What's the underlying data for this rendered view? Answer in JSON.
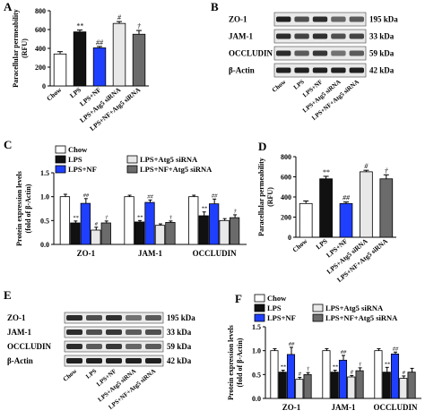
{
  "colors": {
    "Chow": "#ffffff",
    "LPS": "#111111",
    "LPS+NF": "#1f3fff",
    "LPS+Atg5 siRNA": "#e8e8e8",
    "LPS+NF+Atg5 siRNA": "#6b6b6b"
  },
  "chart_data": [
    {
      "panel": "A",
      "type": "bar",
      "ylabel": "Paracellular permeability (RFU)",
      "ylim": [
        0,
        800
      ],
      "yticks": [
        0,
        200,
        400,
        600,
        800
      ],
      "categories": [
        "Chow",
        "LPS",
        "LPS+NF",
        "LPS+Atg5 siRNA",
        "LPS+NF+Atg5 siRNA"
      ],
      "values": [
        340,
        575,
        405,
        665,
        550
      ],
      "errors": [
        25,
        20,
        15,
        20,
        40
      ],
      "annotations": [
        "",
        "**",
        "##",
        "#",
        "†"
      ]
    },
    {
      "panel": "B",
      "type": "blot",
      "rows": [
        {
          "label": "ZO-1",
          "kda": "195 kDa",
          "intensity": [
            0.95,
            0.75,
            0.9,
            0.65,
            0.7
          ]
        },
        {
          "label": "JAM-1",
          "kda": "33 kDa",
          "intensity": [
            0.9,
            0.8,
            0.88,
            0.75,
            0.8
          ]
        },
        {
          "label": "OCCLUDIN",
          "kda": "59 kDa",
          "intensity": [
            0.9,
            0.7,
            0.85,
            0.6,
            0.7
          ]
        },
        {
          "label": "β-Actin",
          "kda": "42 kDa",
          "intensity": [
            0.95,
            0.95,
            0.95,
            0.95,
            0.95
          ]
        }
      ],
      "lanes": [
        "Chow",
        "LPS",
        "LPS+NF",
        "LPS+Atg5 siRNA",
        "LPS+NF+Atg5 siRNA"
      ]
    },
    {
      "panel": "C",
      "type": "bar",
      "ylabel": "Protein expression levels (fold of β-Actin)",
      "ylim": [
        0,
        1.5
      ],
      "yticks": [
        0.0,
        0.5,
        1.0,
        1.5
      ],
      "categories": [
        "ZO-1",
        "JAM-1",
        "OCCLUDIN"
      ],
      "series": [
        {
          "name": "Chow",
          "values": [
            1.0,
            1.0,
            1.0
          ],
          "errors": [
            0.05,
            0.03,
            0.03
          ],
          "annotations": [
            "",
            "",
            ""
          ]
        },
        {
          "name": "LPS",
          "values": [
            0.45,
            0.47,
            0.6
          ],
          "errors": [
            0.04,
            0.03,
            0.08
          ],
          "annotations": [
            "**",
            "**",
            "**"
          ]
        },
        {
          "name": "LPS+NF",
          "values": [
            0.86,
            0.88,
            0.85
          ],
          "errors": [
            0.1,
            0.05,
            0.1
          ],
          "annotations": [
            "##",
            "##",
            "##"
          ]
        },
        {
          "name": "LPS+Atg5 siRNA",
          "values": [
            0.3,
            0.4,
            0.5
          ],
          "errors": [
            0.06,
            0.03,
            0.04
          ],
          "annotations": [
            "#",
            "",
            ""
          ]
        },
        {
          "name": "LPS+NF+Atg5 siRNA",
          "values": [
            0.45,
            0.46,
            0.56
          ],
          "errors": [
            0.04,
            0.03,
            0.06
          ],
          "annotations": [
            "†",
            "†",
            "†"
          ]
        }
      ]
    },
    {
      "panel": "D",
      "type": "bar",
      "ylabel": "Paracellular permeability (RFU)",
      "ylim": [
        0,
        800
      ],
      "yticks": [
        0,
        200,
        400,
        600,
        800
      ],
      "categories": [
        "Chow",
        "LPS",
        "LPS+NF",
        "LPS+Atg5 siRNA",
        "LPS+NF+Atg5 siRNA"
      ],
      "values": [
        335,
        580,
        335,
        650,
        580
      ],
      "errors": [
        25,
        25,
        15,
        15,
        40
      ],
      "annotations": [
        "",
        "**",
        "##",
        "#",
        "†"
      ]
    },
    {
      "panel": "E",
      "type": "blot",
      "rows": [
        {
          "label": "ZO-1",
          "kda": "195 kDa",
          "intensity": [
            0.9,
            0.75,
            0.88,
            0.6,
            0.7
          ]
        },
        {
          "label": "JAM-1",
          "kda": "33 kDa",
          "intensity": [
            0.9,
            0.75,
            0.85,
            0.7,
            0.75
          ]
        },
        {
          "label": "OCCLUDIN",
          "kda": "59 kDa",
          "intensity": [
            0.9,
            0.7,
            0.85,
            0.65,
            0.7
          ]
        },
        {
          "label": "β-Actin",
          "kda": "42 kDa",
          "intensity": [
            0.95,
            0.95,
            0.95,
            0.95,
            0.95
          ]
        }
      ],
      "lanes": [
        "Chow",
        "LPS",
        "LPS+NF",
        "LPS+Atg5 siRNA",
        "LPS+NF+Atg5 siRNA"
      ]
    },
    {
      "panel": "F",
      "type": "bar",
      "ylabel": "Protein expression levels (fold of β-Actin)",
      "ylim": [
        0,
        1.5
      ],
      "yticks": [
        0.0,
        0.5,
        1.0,
        1.5
      ],
      "categories": [
        "ZO-1",
        "JAM-1",
        "OCCLUDIN"
      ],
      "series": [
        {
          "name": "Chow",
          "values": [
            1.0,
            1.0,
            1.0
          ],
          "errors": [
            0.04,
            0.04,
            0.04
          ],
          "annotations": [
            "",
            "",
            ""
          ]
        },
        {
          "name": "LPS",
          "values": [
            0.55,
            0.55,
            0.55
          ],
          "errors": [
            0.04,
            0.04,
            0.1
          ],
          "annotations": [
            "**",
            "**",
            "**"
          ]
        },
        {
          "name": "LPS+NF",
          "values": [
            0.92,
            0.8,
            0.93
          ],
          "errors": [
            0.15,
            0.1,
            0.04
          ],
          "annotations": [
            "##",
            "##",
            "##"
          ]
        },
        {
          "name": "LPS+Atg5 siRNA",
          "values": [
            0.4,
            0.45,
            0.42
          ],
          "errors": [
            0.04,
            0.03,
            0.05
          ],
          "annotations": [
            "#",
            "#",
            "#"
          ]
        },
        {
          "name": "LPS+NF+Atg5 siRNA",
          "values": [
            0.5,
            0.58,
            0.55
          ],
          "errors": [
            0.04,
            0.06,
            0.08
          ],
          "annotations": [
            "†",
            "†",
            ""
          ]
        }
      ]
    }
  ]
}
